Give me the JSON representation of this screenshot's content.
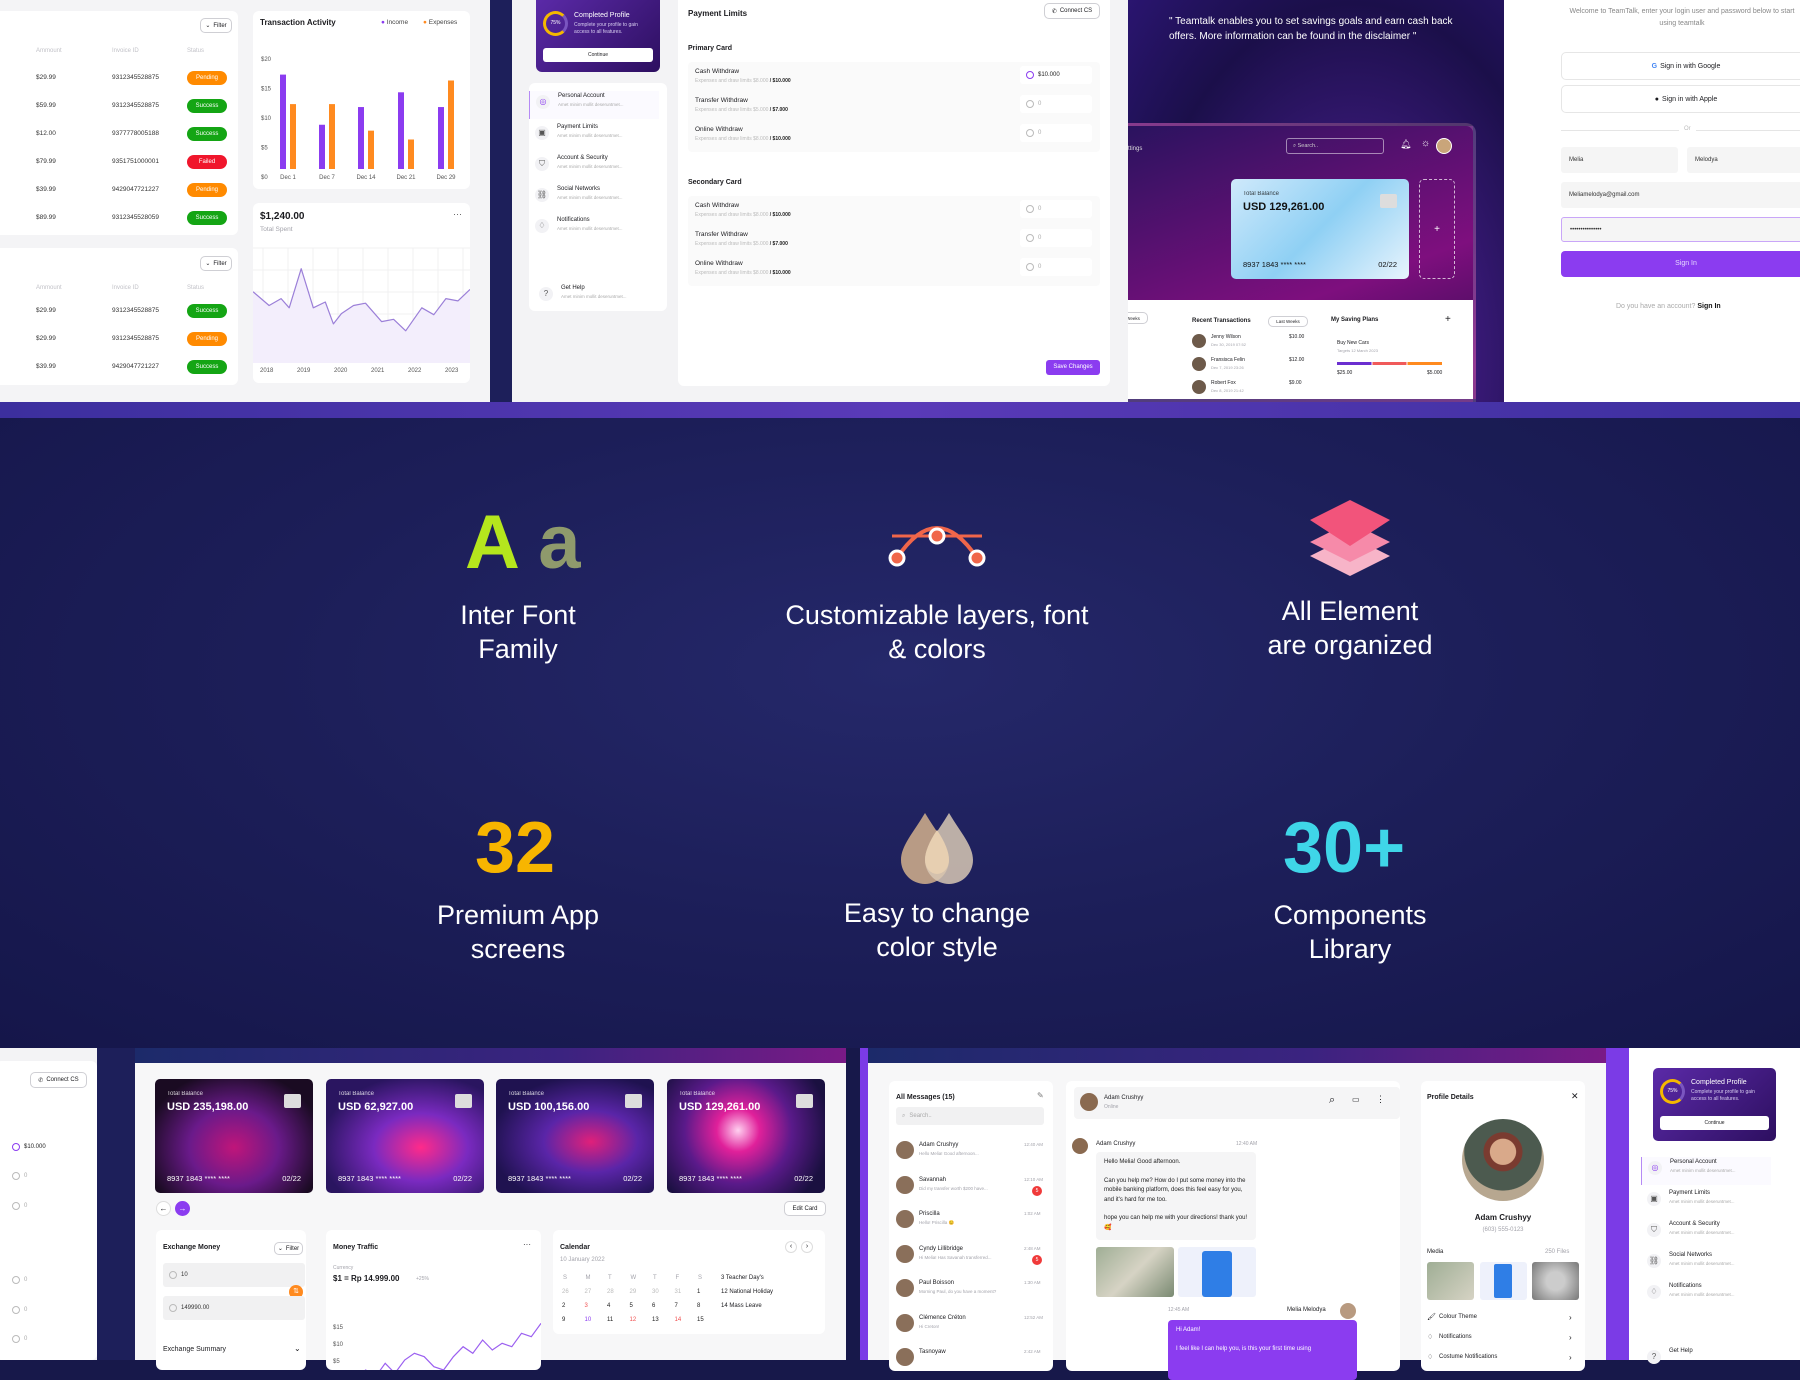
{
  "invoices_table_1": {
    "filter_label": "Filter",
    "headers": [
      "Ammount",
      "Invoice ID",
      "Status"
    ],
    "rows": [
      {
        "amount": "$29.99",
        "invoice": "9312345528875",
        "status": "Pending"
      },
      {
        "amount": "$59.99",
        "invoice": "9312345528875",
        "status": "Success"
      },
      {
        "amount": "$12.00",
        "invoice": "9377778005188",
        "status": "Success"
      },
      {
        "amount": "$79.99",
        "invoice": "9351751000001",
        "status": "Failed"
      },
      {
        "amount": "$39.99",
        "invoice": "9429047721227",
        "status": "Pending"
      },
      {
        "amount": "$89.99",
        "invoice": "9312345528059",
        "status": "Success"
      }
    ]
  },
  "invoices_table_2": {
    "filter_label": "Filter",
    "headers": [
      "Ammount",
      "Invoice ID",
      "Status"
    ],
    "rows": [
      {
        "amount": "$29.99",
        "invoice": "9312345528875",
        "status": "Success"
      },
      {
        "amount": "$29.99",
        "invoice": "9312345528875",
        "status": "Pending"
      },
      {
        "amount": "$39.99",
        "invoice": "9429047721227",
        "status": "Success"
      }
    ]
  },
  "status_colors": {
    "Pending": "#ff8a00",
    "Success": "#14a514",
    "Failed": "#f0162c"
  },
  "chart_data": [
    {
      "type": "bar",
      "title": "Transaction Activity",
      "categories": [
        "Dec 1",
        "Dec 7",
        "Dec 14",
        "Dec 21",
        "Dec 29"
      ],
      "series": [
        {
          "name": "Income",
          "color": "#8b3cf0",
          "values": [
            16,
            7.5,
            10.5,
            13,
            10.5
          ]
        },
        {
          "name": "Expenses",
          "color": "#ff8a1f",
          "values": [
            11,
            11,
            6.5,
            5,
            15
          ]
        }
      ],
      "yticks": [
        "$0",
        "$5",
        "$10",
        "$15",
        "$20"
      ],
      "ylim": [
        0,
        20
      ],
      "legend": "top-right"
    },
    {
      "type": "line",
      "title": "$1,240.00",
      "subtitle": "Total Spent",
      "categories": [
        "2018",
        "2019",
        "2020",
        "2021",
        "2022",
        "2023"
      ],
      "x": [
        2017.8,
        2018.2,
        2018.5,
        2018.7,
        2019.0,
        2019.3,
        2019.6,
        2019.8,
        2020.0,
        2020.3,
        2020.6,
        2021.0,
        2021.3,
        2021.6,
        2022.0,
        2022.3,
        2022.6,
        2022.9,
        2023.2
      ],
      "y": [
        62,
        50,
        56,
        48,
        82,
        48,
        53,
        34,
        43,
        50,
        52,
        36,
        38,
        28,
        48,
        42,
        56,
        54,
        64
      ],
      "ylim": [
        0,
        100
      ],
      "grid": true,
      "color": "#9b7fd8"
    },
    {
      "type": "line",
      "title": "Money Traffic",
      "yticks": [
        "$0",
        "$5",
        "$10",
        "$15"
      ],
      "ylim": [
        0,
        18
      ],
      "x": [
        0,
        1,
        2,
        3,
        4,
        5,
        6,
        7,
        8,
        9,
        10,
        11,
        12,
        13,
        14,
        15,
        16,
        17,
        18,
        19
      ],
      "y": [
        1,
        3,
        1,
        5,
        2,
        6,
        8,
        7,
        4,
        3,
        7,
        10,
        8,
        12,
        9,
        11,
        10,
        14,
        13,
        17
      ],
      "color": "#9b5ff0"
    }
  ],
  "settings_panel": {
    "profile_card": {
      "percent": "75%",
      "title": "Completed Profile",
      "text": "Complete your profile to gain access to all features.",
      "button": "Continue"
    },
    "menu": [
      {
        "title": "Personal Account",
        "sub": "Amet minim mollit deseruntmet...",
        "icon": "user-icon"
      },
      {
        "title": "Payment Limits",
        "sub": "Amet minim mollit deseruntmet...",
        "icon": "wallet-icon"
      },
      {
        "title": "Account & Security",
        "sub": "Amet minim mollit deseruntmet...",
        "icon": "shield-icon"
      },
      {
        "title": "Social Networks",
        "sub": "Amet minim mollit deseruntmet...",
        "icon": "link-icon"
      },
      {
        "title": "Notifications",
        "sub": "Amet minim mollit deseruntmet...",
        "icon": "bell-icon"
      }
    ],
    "help": {
      "title": "Get Help",
      "sub": "Amet minim mollit deseruntmet..."
    },
    "title": "Payment Limits",
    "connect_label": "Connect CS",
    "groups": [
      {
        "title": "Primary Card",
        "rows": [
          {
            "name": "Cash Withdraw",
            "desc": "Expenses and draw limits",
            "used": "$8.000",
            "limit": "/ $10.000",
            "value": "$10.000"
          },
          {
            "name": "Transfer Withdraw",
            "desc": "Expenses and draw limits",
            "used": "$5.000",
            "limit": "/ $7.000",
            "value": "0"
          },
          {
            "name": "Online Withdraw",
            "desc": "Expenses and draw limits",
            "used": "$8.000",
            "limit": "/ $10.000",
            "value": "0"
          }
        ]
      },
      {
        "title": "Secondary Card",
        "rows": [
          {
            "name": "Cash Withdraw",
            "desc": "Expenses and draw limits",
            "used": "$8.000",
            "limit": "/ $10.000",
            "value": "0"
          },
          {
            "name": "Transfer Withdraw",
            "desc": "Expenses and draw limits",
            "used": "$5.000",
            "limit": "/ $7.000",
            "value": "0"
          },
          {
            "name": "Online Withdraw",
            "desc": "Expenses and draw limits",
            "used": "$8.000",
            "limit": "/ $10.000",
            "value": "0"
          }
        ]
      }
    ],
    "save_label": "Save Changes"
  },
  "promo": {
    "quote": "\" Teamtalk enables you to set savings goals and earn cash back offers. More information can be found in the disclaimer \"",
    "nav_fragment": "ttings",
    "search_placeholder": "Search..",
    "card": {
      "label": "Total Balance",
      "balance": "USD 129,261.00",
      "number": "8937 1843 **** ****",
      "expiry": "02/22"
    },
    "add_card": "+",
    "weeks_fragment": "Weeks",
    "recent": {
      "title": "Recent Transactions",
      "filter": "Last Weeks",
      "items": [
        {
          "name": "Jenny Wilson",
          "date": "Dec 30, 2019 07:52",
          "amount": "$10.00"
        },
        {
          "name": "Fransisca Felin",
          "date": "Dec 7, 2019 23:26",
          "amount": "$12.00"
        },
        {
          "name": "Robert Fox",
          "date": "Dec 8, 2019 21:42",
          "amount": "$9.00"
        }
      ]
    },
    "saving": {
      "title": "My Saving Plans",
      "add": "+",
      "plan": "Buy New Cars",
      "target": "Targets 12 March 2023",
      "from": "$25.00",
      "to": "$5.000"
    }
  },
  "login": {
    "welcome": "Welcome to TeamTalk, enter your login user and password below to start using teamtalk",
    "google": "Sign in with Google",
    "apple": "Sign in with Apple",
    "or": "Or",
    "first_name": "Melia",
    "last_name": "Melodya",
    "email": "Meliamelodya@gmail.com",
    "password": "•••••••••••••••",
    "submit": "Sign In",
    "account_prompt": "Do you have an account?",
    "account_link": "Sign In"
  },
  "features": [
    {
      "headline": "Aa",
      "label": "Inter Font Family",
      "icon": "font-icon"
    },
    {
      "label": "Customizable layers, font & colors",
      "icon": "bezier-curve-icon"
    },
    {
      "label": "All Element are organized",
      "icon": "layers-icon"
    },
    {
      "headline": "32",
      "label": "Premium App screens"
    },
    {
      "label": "Easy to change color style",
      "icon": "color-drop-icon"
    },
    {
      "headline": "30+",
      "label": "Components Library"
    }
  ],
  "bottom_left": {
    "connect_label": "Connect CS",
    "values": [
      "$10.000",
      "0",
      "0",
      "0",
      "0",
      "0"
    ]
  },
  "cards_dashboard": {
    "cards": [
      {
        "label": "Total Balance",
        "balance": "USD 235,198.00",
        "number": "8937 1843 **** ****",
        "expiry": "02/22"
      },
      {
        "label": "Total Balance",
        "balance": "USD 62,927.00",
        "number": "8937 1843 **** ****",
        "expiry": "02/22"
      },
      {
        "label": "Total Balance",
        "balance": "USD 100,156.00",
        "number": "8937 1843 **** ****",
        "expiry": "02/22"
      },
      {
        "label": "Total Balance",
        "balance": "USD 129,261.00",
        "number": "8937 1843 **** ****",
        "expiry": "02/22"
      }
    ],
    "edit_label": "Edit Card",
    "exchange": {
      "title": "Exchange Money",
      "filter": "Filter",
      "from": "10",
      "to": "149990.00",
      "summary": "Exchange Summary"
    },
    "traffic": {
      "currency_label": "Currency",
      "rate": "$1 = Rp 14.999.00",
      "change": "+25%"
    },
    "calendar": {
      "title": "Calendar",
      "date": "10 January 2022",
      "weekdays": [
        "S",
        "M",
        "T",
        "W",
        "T",
        "F",
        "S"
      ],
      "days": [
        "26",
        "27",
        "28",
        "29",
        "30",
        "31",
        "1",
        "2",
        "3",
        "4",
        "5",
        "6",
        "7",
        "8",
        "9",
        "10",
        "11",
        "12",
        "13",
        "14",
        "15"
      ],
      "events": [
        "3 Teacher Day's",
        "12 National Holiday",
        "14 Mass Leave"
      ]
    }
  },
  "chat": {
    "list_title": "All Messages (15)",
    "search_placeholder": "Search..",
    "conversations": [
      {
        "name": "Adam Crushyy",
        "preview": "Hello Melia! Good afternoon...",
        "time": "12:40 AM",
        "badge": ""
      },
      {
        "name": "Savannah",
        "preview": "Did my transfer worth $200 have...",
        "time": "12:10 AM",
        "badge": "5"
      },
      {
        "name": "Priscilla",
        "preview": "Hello! Priscilla 😊",
        "time": "1:02 AM",
        "badge": ""
      },
      {
        "name": "Cyndy Lillibridge",
        "preview": "Hi Melia! Has Savanah transferred...",
        "time": "2:48 AM",
        "badge": "5"
      },
      {
        "name": "Paul Boisson",
        "preview": "Morning Paul, do you have a moment?",
        "time": "1:30 AM",
        "badge": ""
      },
      {
        "name": "Clémence Créton",
        "preview": "Hi Creton!",
        "time": "12:52 AM",
        "badge": ""
      },
      {
        "name": "Tasnoyaw",
        "preview": "",
        "time": "2:42 AM",
        "badge": ""
      }
    ],
    "header": {
      "name": "Adam Crushyy",
      "status": "Online"
    },
    "incoming": {
      "name": "Adam Crushyy",
      "time": "12:40 AM",
      "lines": [
        "Hello Melia! Good afternoon.",
        "Can you help me? How do I put some money into the mobile banking platform, does this feel easy for you, and it's hard for me too.",
        "hope you can help me with your directions! thank you! 🥰"
      ]
    },
    "outgoing": {
      "name": "Melia Melodya",
      "time": "12:45 AM",
      "lines": [
        "Hi Adam!",
        "I feel like I can help you, is this your first time using"
      ]
    },
    "profile": {
      "title": "Profile Details",
      "name": "Adam Crushyy",
      "phone": "(603) 555-0123",
      "media_label": "Media",
      "media_count": "250 Files",
      "options": [
        "Colour Theme",
        "Notifications",
        "Costume Notifications"
      ]
    }
  },
  "colors": {
    "accent": "#8b3cf0",
    "navy": "#1a1b50",
    "orange": "#ff8a1f"
  }
}
